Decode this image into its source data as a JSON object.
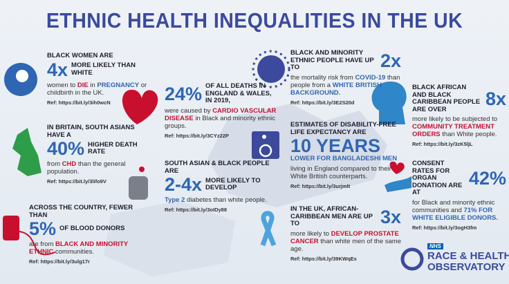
{
  "title": "ETHNIC HEALTH INEQUALITIES IN THE UK",
  "blocks": [
    {
      "heading": "BLACK WOMEN ARE",
      "stat": "4x",
      "stat_text": "MORE LIKELY THAN WHITE",
      "body": [
        {
          "text": "women to "
        },
        {
          "text": "DIE",
          "color": "#c8102e"
        },
        {
          "text": " in "
        },
        {
          "text": "PREGNANCY",
          "color": "#2f66b3"
        },
        {
          "text": " or childbirth in the UK."
        }
      ],
      "ref": "Ref: https://bit.ly/3ih0wcN"
    },
    {
      "heading": "IN BRITAIN, SOUTH ASIANS HAVE A",
      "stat": "40%",
      "stat_text": "HIGHER DEATH RATE",
      "body": [
        {
          "text": "from "
        },
        {
          "text": "CHD",
          "color": "#c8102e"
        },
        {
          "text": " than the general population."
        }
      ],
      "ref": "Ref: https://bit.ly/3lifo9V"
    },
    {
      "heading": "ACROSS THE COUNTRY, FEWER THAN",
      "stat": "5%",
      "stat_text": "OF BLOOD DONORS",
      "body": [
        {
          "text": "are from "
        },
        {
          "text": "BLACK AND MINORITY ETHNIC",
          "color": "#c8102e"
        },
        {
          "text": " communities."
        }
      ],
      "ref": "Ref: https://bit.ly/3ulg17r"
    },
    {
      "stat": "24%",
      "stat_text": "OF ALL DEATHS IN ENGLAND & WALES, IN 2019,",
      "body": [
        {
          "text": "were caused by "
        },
        {
          "text": "CARDIO VASCULAR DISEASE",
          "color": "#c8102e"
        },
        {
          "text": " in Black and minority ethnic groups."
        }
      ],
      "ref": "Ref: https://bit.ly/3CYz22P"
    },
    {
      "heading": "SOUTH ASIAN & BLACK PEOPLE ARE",
      "stat": "2-4x",
      "stat_text": "MORE LIKELY TO DEVELOP",
      "body": [
        {
          "text": "Type 2",
          "color": "#2f66b3"
        },
        {
          "text": " diabetes than white people."
        }
      ],
      "ref": "Ref: https://bit.ly/3oIDy88"
    },
    {
      "heading": "BLACK AND MINORITY ETHNIC PEOPLE HAVE UP TO",
      "stat": "2x",
      "body": [
        {
          "text": "the mortality risk from "
        },
        {
          "text": "COVID-19",
          "color": "#2f66b3"
        },
        {
          "text": " than people from a "
        },
        {
          "text": "WHITE BRITISH BACKGROUND.",
          "color": "#2f66b3"
        }
      ],
      "ref": "Ref: https://bit.ly/3E2S20d"
    },
    {
      "heading": "ESTIMATES OF DISABILITY-FREE LIFE EXPECTANCY ARE",
      "stat": "10 YEARS",
      "stat_text": "LOWER FOR BANGLADESHI MEN",
      "body": [
        {
          "text": "living in England compared to their White British counterparts."
        }
      ],
      "ref": "Ref: https://bit.ly/3urjmlt"
    },
    {
      "heading": "IN THE UK, AFRICAN-CARIBBEAN MEN ARE UP TO",
      "stat": "3x",
      "body": [
        {
          "text": "more likely to "
        },
        {
          "text": "DEVELOP PROSTATE CANCER",
          "color": "#c8102e"
        },
        {
          "text": " than white men of the same age."
        }
      ],
      "ref": "Ref: https://bit.ly/39KWqEs"
    },
    {
      "heading": "BLACK AFRICAN AND BLACK CARIBBEAN PEOPLE ARE OVER",
      "stat": "8x",
      "body": [
        {
          "text": "more likely to be subjected to "
        },
        {
          "text": "COMMUNITY TREATMENT ORDERS",
          "color": "#c8102e"
        },
        {
          "text": " than White people."
        }
      ],
      "ref": "Ref: https://bit.ly/3zK5ljL"
    },
    {
      "heading": "CONSENT RATES FOR ORGAN DONATION ARE AT",
      "stat": "42%",
      "body": [
        {
          "text": "for Black and minority ethnic communities and "
        },
        {
          "text": "71% FOR WHITE ELIGIBLE DONORS.",
          "color": "#2f66b3"
        }
      ],
      "ref": "Ref: https://bit.ly/3ogH3fm"
    }
  ],
  "logo": {
    "badge": "NHS",
    "line1": "RACE & HEALTH",
    "line2": "OBSERVATORY"
  }
}
